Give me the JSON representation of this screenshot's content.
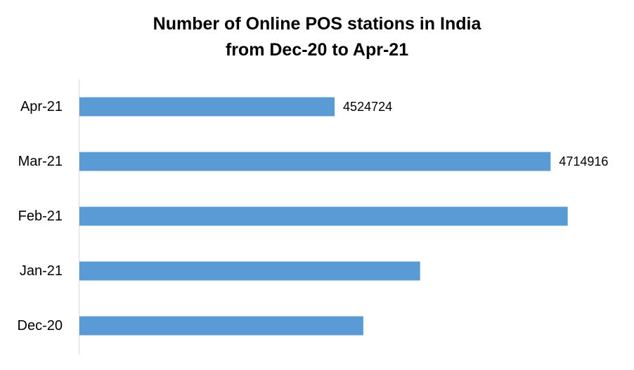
{
  "chart_data": {
    "type": "bar",
    "orientation": "horizontal",
    "title_lines": [
      "Number of Online POS stations in India",
      "from Dec-20 to Apr-21"
    ],
    "categories": [
      "Apr-21",
      "Mar-21",
      "Feb-21",
      "Jan-21",
      "Dec-20"
    ],
    "values": [
      4524724,
      4714916,
      4730000,
      4600000,
      4550000
    ],
    "data_labels": [
      "4524724",
      "4714916",
      "",
      "",
      ""
    ],
    "xlim": [
      4300000,
      4750000
    ],
    "xaxis_visible": false,
    "grid": false,
    "legend": "none",
    "bar_color": "#5b9bd5"
  }
}
